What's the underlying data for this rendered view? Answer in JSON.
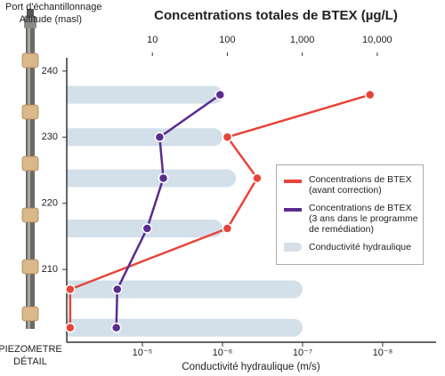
{
  "chart_data": {
    "type": "line",
    "title": "Concentrations totales de BTEX (µg/L)",
    "xlabel": "Conductivité hydraulique (m/s)",
    "ylabel": "Altitude (masl)",
    "port_label": "Port d'échantillonnage",
    "piezometer_label": [
      "PIEZOMETRE",
      "DÉTAIL"
    ],
    "log_x": true,
    "xlim": [
      0.72,
      61000
    ],
    "xticks": [
      10,
      100,
      {
        "value": 1000,
        "label": "1,000"
      },
      {
        "value": 10000,
        "label": "10,000"
      }
    ],
    "x2lim": [
      8.8e-05,
      2.15e-09
    ],
    "x2ticks": [
      {
        "value": 1e-05,
        "label": "10⁻⁵"
      },
      {
        "value": 1e-06,
        "label": "10⁻⁶"
      },
      {
        "value": 1e-07,
        "label": "10⁻⁷"
      },
      {
        "value": 1e-08,
        "label": "10⁻⁸"
      }
    ],
    "ylim": [
      199,
      242
    ],
    "yticks": [
      210,
      220,
      230,
      240
    ],
    "altitude": [
      236.4,
      230,
      223.8,
      216.2,
      207,
      201.2
    ],
    "legend": "right",
    "series": [
      {
        "name": "Conductivité hydraulique",
        "type": "bar",
        "axis": "x2",
        "color": "#d3e0ea",
        "values": [
          1e-06,
          1e-06,
          6.8e-07,
          1e-06,
          1e-07,
          1e-07
        ]
      },
      {
        "name": "Concentrations de BTEX\n(avant correction)",
        "type": "line",
        "color": "#e8443a",
        "values": [
          8000,
          100,
          250,
          100,
          0.8,
          0.8
        ]
      },
      {
        "name": "Concentrations de BTEX\n(3 ans dans le programme\nde remédiation)",
        "type": "line",
        "color": "#5b2c8f",
        "values": [
          80,
          12.5,
          14,
          8.5,
          3.4,
          3.3
        ]
      }
    ]
  }
}
